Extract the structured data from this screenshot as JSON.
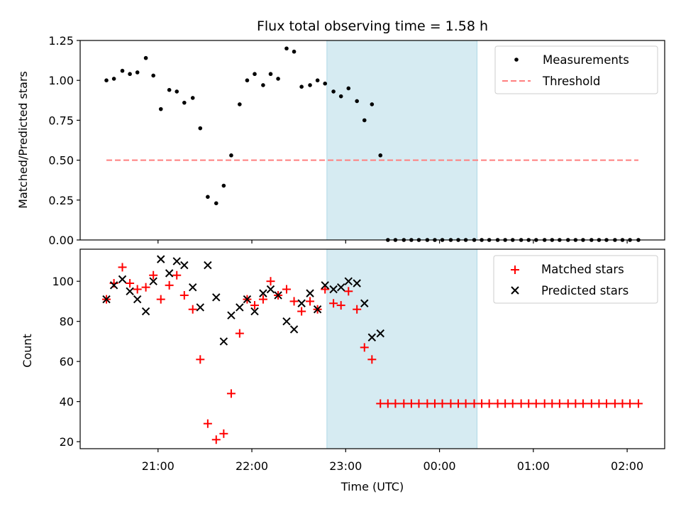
{
  "chart_data": [
    {
      "type": "scatter",
      "title": "Flux total observing time = 1.58 h",
      "xlabel": "",
      "ylabel": "Matched/Predicted stars",
      "ylim": [
        0,
        1.25
      ],
      "yticks": [
        "0.00",
        "0.25",
        "0.50",
        "0.75",
        "1.00",
        "1.25"
      ],
      "xlim": [
        -0.83,
        5.4
      ],
      "grid": false,
      "legend_position": "top-right",
      "shaded_region": {
        "x_start": 1.8,
        "x_end": 3.4,
        "color": "#add8e6"
      },
      "series": [
        {
          "name": "Measurements",
          "marker": "dot",
          "color": "#000000",
          "x": [
            -0.55,
            -0.47,
            -0.38,
            -0.3,
            -0.22,
            -0.13,
            -0.05,
            0.03,
            0.12,
            0.2,
            0.28,
            0.37,
            0.45,
            0.53,
            0.62,
            0.7,
            0.78,
            0.87,
            0.95,
            1.03,
            1.12,
            1.2,
            1.28,
            1.37,
            1.45,
            1.53,
            1.62,
            1.7,
            1.78,
            1.87,
            1.95,
            2.03,
            2.12,
            2.2,
            2.28,
            2.37,
            2.45,
            2.53,
            2.62,
            2.7,
            2.78,
            2.87,
            2.95,
            3.03,
            3.12,
            3.2,
            3.28,
            3.37,
            3.45,
            3.53,
            3.62,
            3.7,
            3.78,
            3.87,
            3.95,
            4.03,
            4.12,
            4.2,
            4.28,
            4.37,
            4.45,
            4.53,
            4.62,
            4.7,
            4.78,
            4.87,
            4.95,
            5.03,
            5.12
          ],
          "y": [
            1.0,
            1.01,
            1.06,
            1.04,
            1.05,
            1.14,
            1.03,
            0.82,
            0.94,
            0.93,
            0.86,
            0.89,
            0.7,
            0.27,
            0.23,
            0.34,
            0.53,
            0.85,
            1.0,
            1.04,
            0.97,
            1.04,
            1.01,
            1.2,
            1.18,
            0.96,
            0.97,
            1.0,
            0.98,
            0.93,
            0.9,
            0.95,
            0.87,
            0.75,
            0.85,
            0.53,
            0,
            0,
            0,
            0,
            0,
            0,
            0,
            0,
            0,
            0,
            0,
            0,
            0,
            0,
            0,
            0,
            0,
            0,
            0,
            0,
            0,
            0,
            0,
            0,
            0,
            0,
            0,
            0,
            0,
            0,
            0,
            0,
            0
          ]
        },
        {
          "name": "Threshold",
          "marker": "dashed-line",
          "color": "#ff7f7f",
          "x": [
            -0.55,
            5.12
          ],
          "y": [
            0.5,
            0.5
          ]
        }
      ]
    },
    {
      "type": "scatter",
      "title": "",
      "xlabel": "Time (UTC)",
      "ylabel": "Count",
      "ylim": [
        16.5,
        116
      ],
      "yticks": [
        "20",
        "40",
        "60",
        "80",
        "100"
      ],
      "xlim": [
        -0.83,
        5.4
      ],
      "xticks": [
        {
          "value": 0,
          "label": "21:00"
        },
        {
          "value": 1,
          "label": "22:00"
        },
        {
          "value": 2,
          "label": "23:00"
        },
        {
          "value": 3,
          "label": "00:00"
        },
        {
          "value": 4,
          "label": "01:00"
        },
        {
          "value": 5,
          "label": "02:00"
        }
      ],
      "grid": false,
      "legend_position": "top-right",
      "shaded_region": {
        "x_start": 1.8,
        "x_end": 3.4,
        "color": "#add8e6"
      },
      "series": [
        {
          "name": "Matched stars",
          "marker": "plus",
          "color": "#ff0000",
          "x": [
            -0.55,
            -0.47,
            -0.38,
            -0.3,
            -0.22,
            -0.13,
            -0.05,
            0.03,
            0.12,
            0.2,
            0.28,
            0.37,
            0.45,
            0.53,
            0.62,
            0.7,
            0.78,
            0.87,
            0.95,
            1.03,
            1.12,
            1.2,
            1.28,
            1.37,
            1.45,
            1.53,
            1.62,
            1.7,
            1.78,
            1.87,
            1.95,
            2.03,
            2.12,
            2.2,
            2.28,
            2.37,
            2.45,
            2.53,
            2.62,
            2.7,
            2.78,
            2.87,
            2.95,
            3.03,
            3.12,
            3.2,
            3.28,
            3.37,
            3.45,
            3.53,
            3.62,
            3.7,
            3.78,
            3.87,
            3.95,
            4.03,
            4.12,
            4.2,
            4.28,
            4.37,
            4.45,
            4.53,
            4.62,
            4.7,
            4.78,
            4.87,
            4.95,
            5.03,
            5.12
          ],
          "y": [
            91,
            99,
            107,
            99,
            96,
            97,
            103,
            91,
            98,
            103,
            93,
            86,
            61,
            29,
            21,
            24,
            44,
            74,
            91,
            88,
            91,
            100,
            93,
            96,
            90,
            85,
            90,
            86,
            96,
            89,
            88,
            95,
            86,
            67,
            61,
            39,
            39,
            39,
            39,
            39,
            39,
            39,
            39,
            39,
            39,
            39,
            39,
            39,
            39,
            39,
            39,
            39,
            39,
            39,
            39,
            39,
            39,
            39,
            39,
            39,
            39,
            39,
            39,
            39,
            39,
            39,
            39,
            39,
            39
          ]
        },
        {
          "name": "Predicted stars",
          "marker": "x",
          "color": "#000000",
          "x": [
            -0.55,
            -0.47,
            -0.38,
            -0.3,
            -0.22,
            -0.13,
            -0.05,
            0.03,
            0.12,
            0.2,
            0.28,
            0.37,
            0.45,
            0.53,
            0.62,
            0.7,
            0.78,
            0.87,
            0.95,
            1.03,
            1.12,
            1.2,
            1.28,
            1.37,
            1.45,
            1.53,
            1.62,
            1.7,
            1.78,
            1.87,
            1.95,
            2.03,
            2.12,
            2.2,
            2.28,
            2.37
          ],
          "y": [
            91,
            98,
            101,
            95,
            91,
            85,
            100,
            111,
            104,
            110,
            108,
            97,
            87,
            108,
            92,
            70,
            83,
            87,
            91,
            85,
            94,
            96,
            93,
            80,
            76,
            89,
            94,
            86,
            98,
            96,
            97,
            100,
            99,
            89,
            72,
            74
          ]
        }
      ]
    }
  ]
}
